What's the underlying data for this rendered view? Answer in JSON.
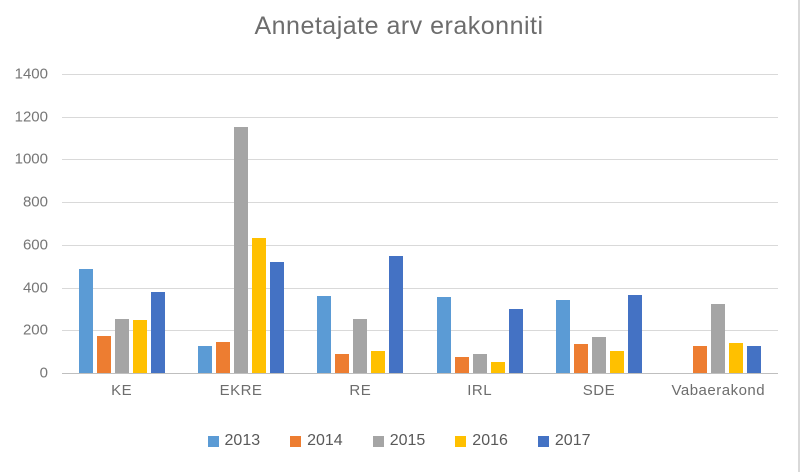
{
  "chart_data": {
    "type": "bar",
    "title": "Annetajate arv erakonniti",
    "categories": [
      "KE",
      "EKRE",
      "RE",
      "IRL",
      "SDE",
      "Vabaerakond"
    ],
    "series": [
      {
        "name": "2013",
        "color": "#5B9BD5",
        "values": [
          485,
          125,
          360,
          355,
          340,
          0
        ]
      },
      {
        "name": "2014",
        "color": "#ED7D31",
        "values": [
          175,
          145,
          90,
          75,
          135,
          125
        ]
      },
      {
        "name": "2015",
        "color": "#A5A5A5",
        "values": [
          255,
          1150,
          255,
          90,
          170,
          325
        ]
      },
      {
        "name": "2016",
        "color": "#FFC000",
        "values": [
          250,
          630,
          105,
          50,
          105,
          140
        ]
      },
      {
        "name": "2017",
        "color": "#4472C4",
        "values": [
          380,
          520,
          550,
          300,
          365,
          125
        ]
      }
    ],
    "xlabel": "",
    "ylabel": "",
    "ylim": [
      0,
      1400
    ],
    "yticks": [
      0,
      200,
      400,
      600,
      800,
      1000,
      1200,
      1400
    ],
    "grid": true,
    "legend_position": "bottom"
  }
}
